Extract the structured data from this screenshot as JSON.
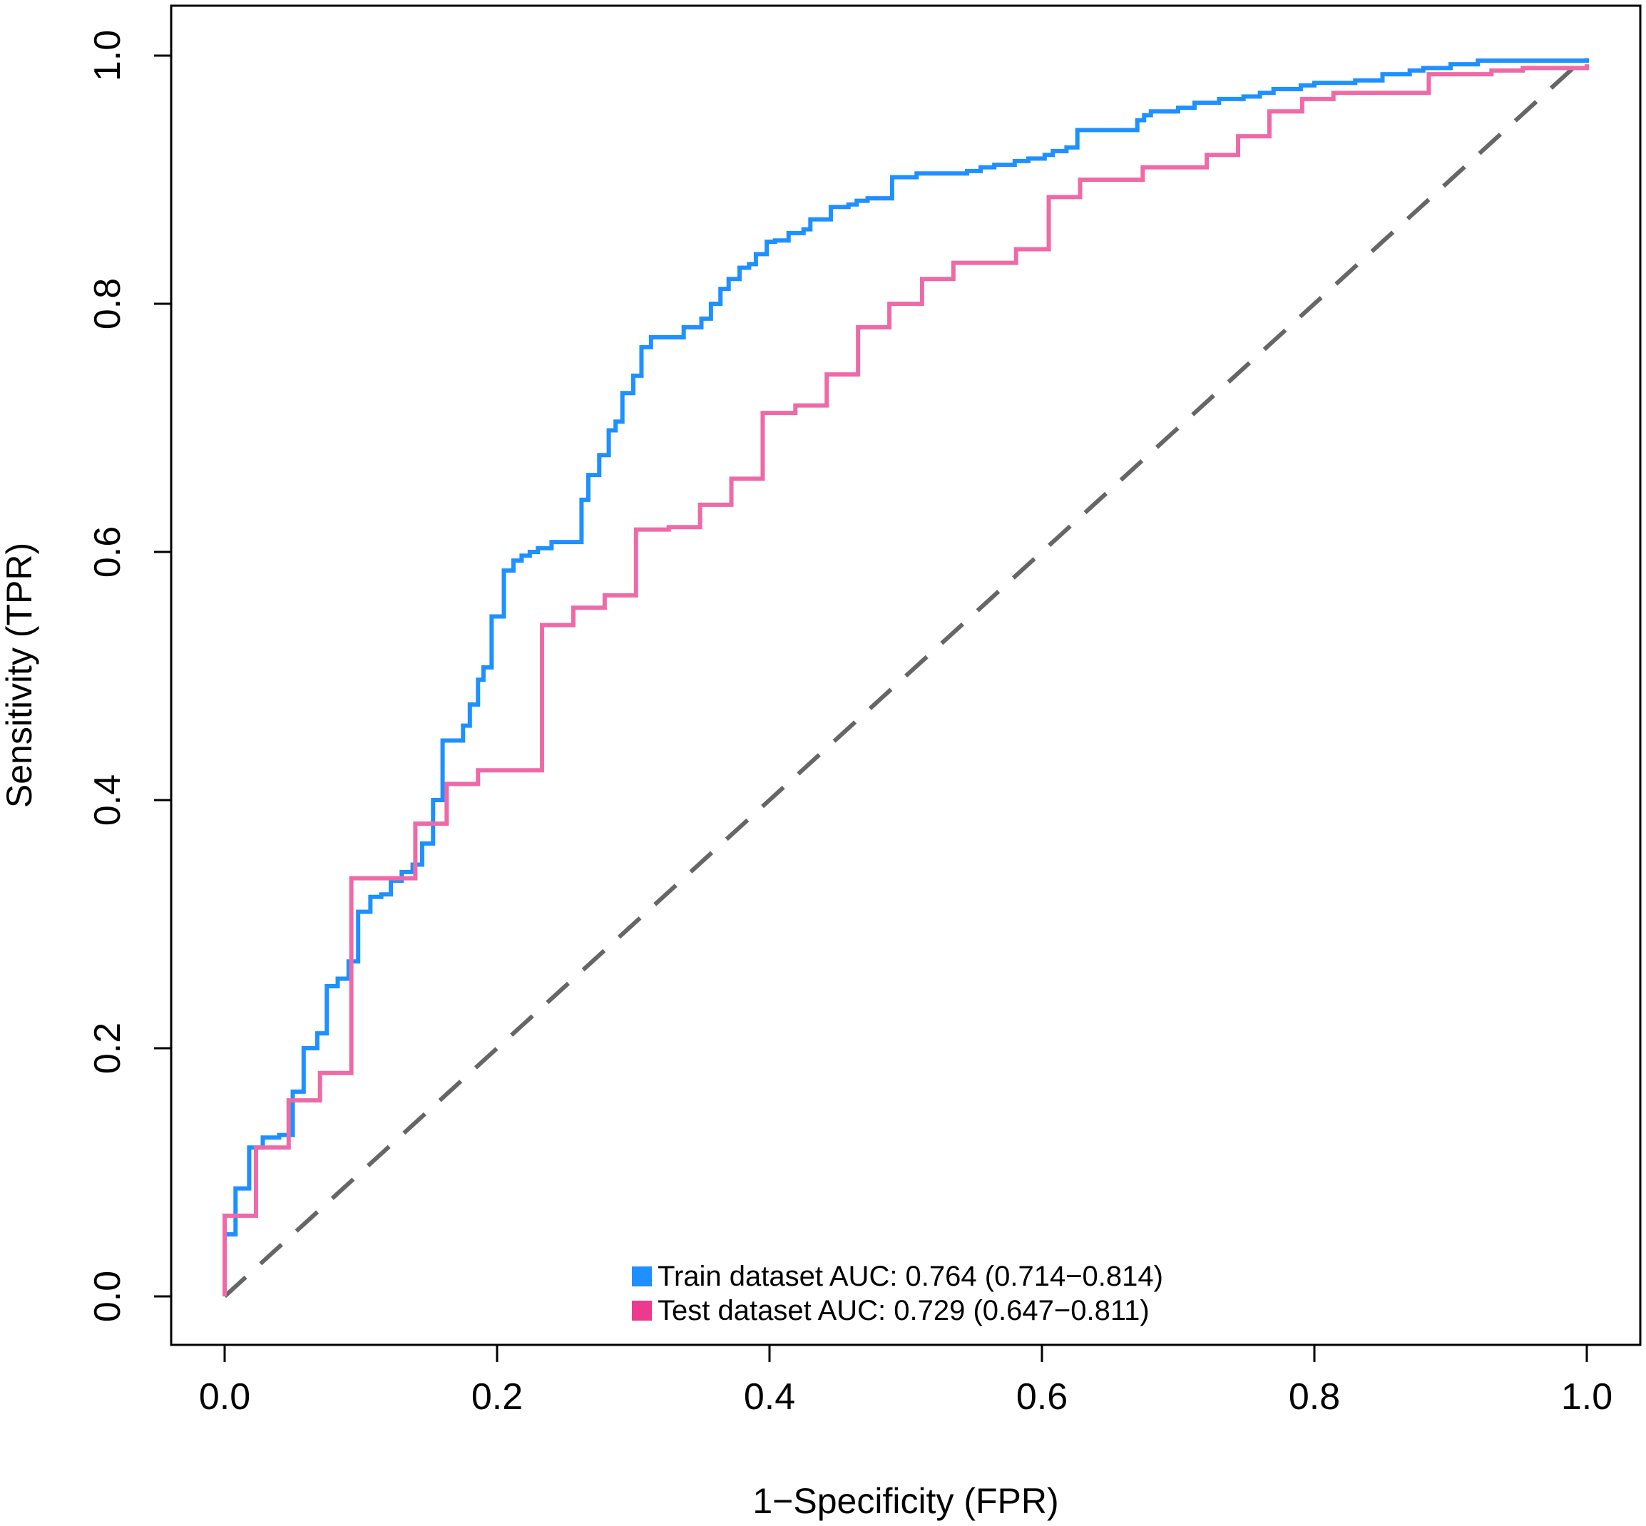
{
  "chart_data": {
    "type": "line",
    "title": "",
    "xlabel": "1−Specificity (FPR)",
    "ylabel": "Sensitivity (TPR)",
    "xlim": [
      0,
      1
    ],
    "ylim": [
      0,
      1
    ],
    "x_ticks": [
      "0.0",
      "0.2",
      "0.4",
      "0.6",
      "0.8",
      "1.0"
    ],
    "y_ticks": [
      "0.0",
      "0.2",
      "0.4",
      "0.6",
      "0.8",
      "1.0"
    ],
    "grid": false,
    "legend_position": "bottom-center",
    "reference_line": {
      "style": "dashed",
      "color": "#666666",
      "x": [
        0,
        1
      ],
      "y": [
        0,
        1
      ]
    },
    "series": [
      {
        "name": "Train dataset",
        "label": "Train dataset AUC: 0.764 (0.714−0.814)",
        "auc": 0.764,
        "ci": [
          0.714,
          0.814
        ],
        "color": "#1E90FF",
        "step": "hv",
        "x": [
          0,
          0.008,
          0.018,
          0.028,
          0.04,
          0.05,
          0.058,
          0.068,
          0.075,
          0.083,
          0.091,
          0.098,
          0.107,
          0.115,
          0.122,
          0.13,
          0.138,
          0.145,
          0.153,
          0.16,
          0.175,
          0.18,
          0.186,
          0.19,
          0.196,
          0.205,
          0.212,
          0.218,
          0.224,
          0.23,
          0.24,
          0.262,
          0.267,
          0.275,
          0.282,
          0.287,
          0.292,
          0.3,
          0.306,
          0.313,
          0.32,
          0.337,
          0.35,
          0.357,
          0.364,
          0.37,
          0.378,
          0.385,
          0.39,
          0.398,
          0.404,
          0.414,
          0.425,
          0.43,
          0.445,
          0.458,
          0.464,
          0.472,
          0.49,
          0.508,
          0.545,
          0.555,
          0.565,
          0.58,
          0.59,
          0.602,
          0.608,
          0.618,
          0.626,
          0.67,
          0.675,
          0.68,
          0.7,
          0.712,
          0.73,
          0.748,
          0.76,
          0.77,
          0.79,
          0.8,
          0.83,
          0.85,
          0.87,
          0.88,
          0.9,
          0.92,
          1
        ],
        "y": [
          0.05,
          0.087,
          0.12,
          0.128,
          0.13,
          0.165,
          0.2,
          0.212,
          0.25,
          0.256,
          0.27,
          0.31,
          0.322,
          0.324,
          0.335,
          0.342,
          0.348,
          0.365,
          0.4,
          0.448,
          0.46,
          0.477,
          0.497,
          0.507,
          0.548,
          0.585,
          0.593,
          0.597,
          0.6,
          0.603,
          0.608,
          0.642,
          0.662,
          0.678,
          0.698,
          0.705,
          0.728,
          0.742,
          0.765,
          0.773,
          0.773,
          0.781,
          0.788,
          0.8,
          0.812,
          0.82,
          0.829,
          0.832,
          0.84,
          0.85,
          0.851,
          0.857,
          0.86,
          0.868,
          0.878,
          0.88,
          0.883,
          0.885,
          0.902,
          0.905,
          0.907,
          0.91,
          0.912,
          0.915,
          0.917,
          0.92,
          0.923,
          0.926,
          0.94,
          0.948,
          0.952,
          0.955,
          0.958,
          0.962,
          0.965,
          0.967,
          0.97,
          0.973,
          0.976,
          0.978,
          0.98,
          0.985,
          0.988,
          0.99,
          0.993,
          0.996,
          0.998
        ]
      },
      {
        "name": "Test dataset",
        "label": "Test dataset AUC: 0.729 (0.647−0.811)",
        "auc": 0.729,
        "ci": [
          0.647,
          0.811
        ],
        "color": "#EE6AA7",
        "step": "hv",
        "x": [
          0,
          0.023,
          0.047,
          0.07,
          0.093,
          0.14,
          0.163,
          0.186,
          0.233,
          0.256,
          0.279,
          0.302,
          0.326,
          0.349,
          0.372,
          0.395,
          0.419,
          0.442,
          0.465,
          0.488,
          0.512,
          0.535,
          0.581,
          0.605,
          0.628,
          0.674,
          0.721,
          0.744,
          0.767,
          0.791,
          0.814,
          0.86,
          0.884,
          0.93,
          0.953,
          1
        ],
        "y": [
          0.065,
          0.12,
          0.158,
          0.18,
          0.337,
          0.381,
          0.413,
          0.424,
          0.541,
          0.555,
          0.565,
          0.618,
          0.62,
          0.638,
          0.659,
          0.712,
          0.718,
          0.743,
          0.781,
          0.8,
          0.82,
          0.833,
          0.844,
          0.886,
          0.9,
          0.91,
          0.92,
          0.935,
          0.955,
          0.965,
          0.97,
          0.97,
          0.985,
          0.988,
          0.99,
          0.993
        ]
      }
    ]
  }
}
